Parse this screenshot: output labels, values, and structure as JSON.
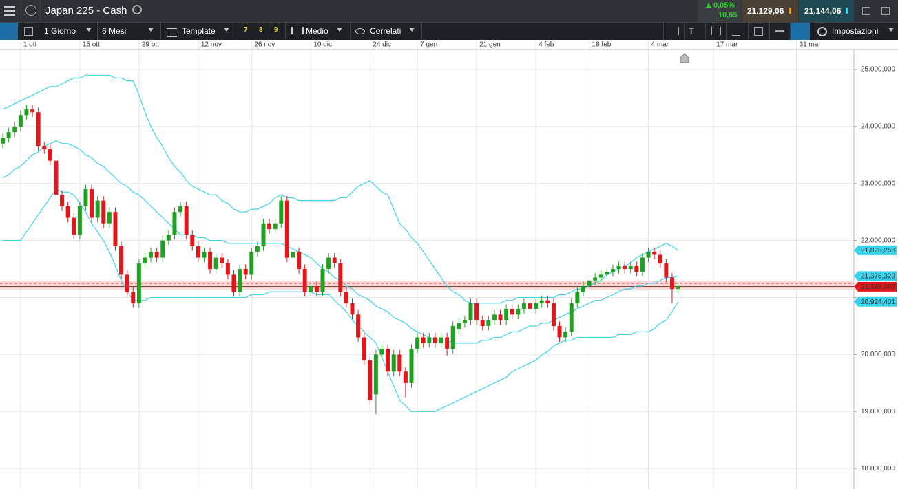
{
  "header": {
    "title": "Japan 225 - Cash",
    "change_pct": "0,05%",
    "change_abs": "10,65",
    "sell": "21.129,06",
    "buy": "21.144,06"
  },
  "toolbar": {
    "interval": "1 Giorno",
    "range": "6 Mesi",
    "template": "Template",
    "presets": [
      "7",
      "8",
      "9"
    ],
    "chart_style": "Medio",
    "related": "Correlati",
    "settings": "Impostazioni"
  },
  "chart_data": {
    "type": "candlestick",
    "up_color": "#21a121",
    "down_color": "#e3161b",
    "grid": true,
    "xlim": [
      -0.47,
      143.7
    ],
    "ylim": [
      17640,
      25350
    ],
    "xticks": [
      {
        "value": 3,
        "label": "1 ott"
      },
      {
        "value": 13,
        "label": "15 ott"
      },
      {
        "value": 23,
        "label": "29 ott"
      },
      {
        "value": 33,
        "label": "12 nov"
      },
      {
        "value": 42,
        "label": "26 nov"
      },
      {
        "value": 52,
        "label": "10 dic"
      },
      {
        "value": 62,
        "label": "24 dic"
      },
      {
        "value": 70,
        "label": "7 gen"
      },
      {
        "value": 80,
        "label": "21 gen"
      },
      {
        "value": 90,
        "label": "4 feb"
      },
      {
        "value": 99,
        "label": "18 feb"
      },
      {
        "value": 109,
        "label": "4 mar"
      },
      {
        "value": 120,
        "label": "17 mar"
      },
      {
        "value": 134,
        "label": "31 mar"
      }
    ],
    "yticks": [
      {
        "value": 18000,
        "label": "18.000,000"
      },
      {
        "value": 19000,
        "label": "19.000,000"
      },
      {
        "value": 20000,
        "label": "20.000,000"
      },
      {
        "value": 21000,
        "label": ""
      },
      {
        "value": 22000,
        "label": "22.000,000"
      },
      {
        "value": 23000,
        "label": "23.000,000"
      },
      {
        "value": 24000,
        "label": "24.000,000"
      },
      {
        "value": 25000,
        "label": "25.000,000"
      }
    ],
    "open": [
      23700,
      23800,
      23900,
      24000,
      24200,
      24300,
      24250,
      23650,
      23600,
      23400,
      22800,
      22600,
      22400,
      22100,
      22600,
      22900,
      22400,
      22700,
      22300,
      22500,
      21900,
      21400,
      21100,
      20900,
      21600,
      21700,
      21800,
      21700,
      22000,
      22100,
      22500,
      22600,
      22100,
      21900,
      21700,
      21800,
      21500,
      21700,
      21600,
      21400,
      21100,
      21500,
      21400,
      21800,
      21900,
      22300,
      22200,
      22300,
      22700,
      21700,
      21800,
      21500,
      21100,
      21200,
      21100,
      21500,
      21700,
      21600,
      21100,
      20900,
      20700,
      20300,
      19900,
      19300,
      20000,
      20100,
      19700,
      20000,
      19700,
      19500,
      20100,
      20300,
      20200,
      20300,
      20200,
      20300,
      20100,
      20450,
      20550,
      20600,
      20900,
      20600,
      20500,
      20600,
      20700,
      20600,
      20800,
      20700,
      20800,
      20900,
      20800,
      20900,
      20950,
      20900,
      20500,
      20300,
      20400,
      20900,
      21100,
      21200,
      21300,
      21350,
      21400,
      21450,
      21500,
      21550,
      21500,
      21550,
      21450,
      21700,
      21800,
      21750,
      21600,
      21350,
      21150
    ],
    "high": [
      23880,
      23980,
      24080,
      24280,
      24380,
      24380,
      24330,
      23730,
      23680,
      23480,
      22880,
      22680,
      22480,
      22680,
      22980,
      22980,
      22780,
      22780,
      22580,
      22580,
      21980,
      21480,
      21180,
      21680,
      21780,
      21880,
      21880,
      22080,
      22180,
      22580,
      22680,
      22680,
      22180,
      21980,
      21880,
      21880,
      21780,
      21780,
      21680,
      21480,
      21580,
      21580,
      21880,
      21980,
      22380,
      22380,
      22380,
      22780,
      22780,
      21880,
      21880,
      21580,
      21280,
      21280,
      21580,
      21780,
      21780,
      21680,
      21180,
      20980,
      20780,
      20380,
      19980,
      20080,
      20180,
      20180,
      20080,
      20080,
      19780,
      20180,
      20380,
      20380,
      20380,
      20380,
      20380,
      20380,
      20580,
      20630,
      20680,
      20980,
      20980,
      20680,
      20680,
      20780,
      20780,
      20880,
      20880,
      20880,
      20980,
      20980,
      20980,
      21030,
      21030,
      20980,
      20580,
      20480,
      20980,
      21180,
      21280,
      21380,
      21430,
      21480,
      21530,
      21580,
      21630,
      21630,
      21630,
      21630,
      21780,
      21880,
      21880,
      21830,
      21680,
      21430,
      21270
    ],
    "low": [
      23620,
      23720,
      23820,
      23920,
      24120,
      24170,
      23570,
      23520,
      23320,
      22720,
      22520,
      22320,
      22020,
      22020,
      22520,
      22320,
      22320,
      22220,
      22220,
      21820,
      21320,
      21020,
      20820,
      20820,
      21520,
      21620,
      21620,
      21620,
      21920,
      22020,
      22420,
      22020,
      21820,
      21620,
      21620,
      21420,
      21420,
      21520,
      21320,
      21020,
      21020,
      21320,
      21320,
      21720,
      21820,
      22120,
      22120,
      22220,
      21620,
      21620,
      21420,
      21020,
      21020,
      21020,
      21020,
      21420,
      21520,
      21020,
      20820,
      20620,
      20220,
      19820,
      19120,
      18950,
      19920,
      19620,
      19620,
      19620,
      19250,
      19420,
      20020,
      20120,
      20120,
      20120,
      20120,
      19980,
      20020,
      20370,
      20470,
      20520,
      20520,
      20420,
      20420,
      20520,
      20520,
      20520,
      20620,
      20620,
      20720,
      20720,
      20720,
      20820,
      20820,
      20420,
      20220,
      20220,
      20320,
      20820,
      21020,
      21120,
      21220,
      21270,
      21320,
      21370,
      21420,
      21420,
      21420,
      21370,
      21370,
      21620,
      21670,
      21520,
      21270,
      20900,
      21070
    ],
    "close": [
      23800,
      23900,
      24000,
      24200,
      24300,
      24250,
      23650,
      23600,
      23400,
      22800,
      22600,
      22400,
      22100,
      22600,
      22900,
      22400,
      22700,
      22300,
      22500,
      21900,
      21400,
      21100,
      20900,
      21600,
      21700,
      21800,
      21700,
      22000,
      22100,
      22500,
      22600,
      22100,
      21900,
      21700,
      21800,
      21500,
      21700,
      21600,
      21400,
      21100,
      21500,
      21400,
      21800,
      21900,
      22300,
      22200,
      22300,
      22700,
      21700,
      21800,
      21500,
      21100,
      21200,
      21100,
      21500,
      21700,
      21600,
      21100,
      20900,
      20700,
      20300,
      19900,
      19200,
      20000,
      20100,
      19700,
      20000,
      19700,
      19500,
      20100,
      20300,
      20200,
      20300,
      20200,
      20300,
      20100,
      20500,
      20550,
      20600,
      20900,
      20600,
      20500,
      20600,
      20700,
      20600,
      20800,
      20700,
      20800,
      20900,
      20800,
      20900,
      20950,
      20900,
      20500,
      20300,
      20400,
      20900,
      21100,
      21200,
      21300,
      21350,
      21400,
      21450,
      21500,
      21550,
      21500,
      21550,
      21450,
      21700,
      21800,
      21750,
      21600,
      21350,
      21150,
      21189.06
    ],
    "series": [
      {
        "color": "#3ad3ee",
        "values": [
          24300,
          24350,
          24400,
          24450,
          24500,
          24550,
          24600,
          24650,
          24700,
          24700,
          24750,
          24800,
          24850,
          24850,
          24900,
          24900,
          24900,
          24900,
          24900,
          24850,
          24850,
          24800,
          24800,
          24550,
          24250,
          24000,
          23800,
          23650,
          23450,
          23300,
          23200,
          23050,
          22950,
          22900,
          22850,
          22800,
          22800,
          22700,
          22650,
          22550,
          22500,
          22500,
          22550,
          22550,
          22600,
          22650,
          22750,
          22800,
          22750,
          22750,
          22700,
          22700,
          22700,
          22700,
          22700,
          22700,
          22700,
          22750,
          22750,
          22850,
          22950,
          23000,
          23050,
          22950,
          22850,
          22800,
          22550,
          22300,
          22200,
          22050,
          21950,
          21800,
          21650,
          21500,
          21350,
          21200,
          21100,
          21050,
          20950,
          20900,
          20900,
          20900,
          20900,
          20900,
          20900,
          20950,
          20950,
          21000,
          21000,
          21000,
          21000,
          21000,
          21000,
          21000,
          21050,
          21050,
          21100,
          21150,
          21150,
          21200,
          21250,
          21300,
          21400,
          21450,
          21500,
          21550,
          21600,
          21700,
          21750,
          21800,
          21850,
          21900,
          21950,
          21900,
          21828.258
        ]
      },
      {
        "color": "#3ad3ee",
        "values": [
          23100,
          23150,
          23250,
          23300,
          23400,
          23500,
          23550,
          23650,
          23700,
          23750,
          23700,
          23700,
          23650,
          23600,
          23500,
          23450,
          23350,
          23300,
          23200,
          23100,
          23000,
          22950,
          22850,
          22800,
          22700,
          22600,
          22500,
          22400,
          22300,
          22200,
          22100,
          22100,
          22100,
          22050,
          22050,
          22000,
          22000,
          22000,
          21950,
          21950,
          21950,
          21950,
          21950,
          21950,
          21950,
          21950,
          21950,
          21950,
          21900,
          21850,
          21800,
          21750,
          21700,
          21600,
          21500,
          21450,
          21350,
          21300,
          21200,
          21150,
          21050,
          21000,
          20950,
          20850,
          20800,
          20750,
          20650,
          20600,
          20550,
          20450,
          20400,
          20350,
          20300,
          20250,
          20250,
          20250,
          20200,
          20200,
          20200,
          20200,
          20200,
          20250,
          20250,
          20300,
          20300,
          20350,
          20400,
          20400,
          20450,
          20500,
          20500,
          20550,
          20550,
          20600,
          20650,
          20700,
          20750,
          20800,
          20850,
          20900,
          20950,
          20950,
          21000,
          21050,
          21100,
          21150,
          21150,
          21200,
          21200,
          21250,
          21250,
          21300,
          21350,
          21350,
          21376.329
        ]
      },
      {
        "color": "#3ad3ee",
        "values": [
          22000,
          22000,
          22000,
          22000,
          22150,
          22300,
          22450,
          22600,
          22750,
          22900,
          22850,
          22850,
          22800,
          22650,
          22500,
          22300,
          22150,
          22000,
          21800,
          21550,
          21300,
          21100,
          20950,
          20950,
          20950,
          21000,
          21000,
          21000,
          21000,
          21000,
          21000,
          21000,
          21000,
          21000,
          21000,
          21000,
          21000,
          21000,
          21000,
          21000,
          21000,
          21000,
          21050,
          21050,
          21050,
          21100,
          21100,
          21100,
          21100,
          21100,
          21100,
          21100,
          21100,
          21050,
          21050,
          21050,
          20950,
          20850,
          20750,
          20600,
          20500,
          20400,
          20300,
          20200,
          19950,
          19700,
          19450,
          19200,
          19100,
          19000,
          19000,
          19000,
          19000,
          19000,
          19050,
          19100,
          19150,
          19200,
          19250,
          19300,
          19350,
          19400,
          19450,
          19500,
          19550,
          19600,
          19700,
          19750,
          19800,
          19850,
          19900,
          20000,
          20050,
          20150,
          20200,
          20250,
          20250,
          20300,
          20300,
          20300,
          20300,
          20300,
          20300,
          20300,
          20350,
          20350,
          20350,
          20400,
          20400,
          20400,
          20450,
          20550,
          20600,
          20750,
          20924.401
        ]
      }
    ],
    "price_tags": [
      {
        "value": 21828.258,
        "label": "21.828,258",
        "color": "#3ad3ee"
      },
      {
        "value": 21376.329,
        "label": "21.376,329",
        "color": "#3ad3ee"
      },
      {
        "value": 21189.06,
        "label": "21.189,060",
        "color": "#e3161b"
      },
      {
        "value": 20924.401,
        "label": "20.924,401",
        "color": "#3ad3ee"
      }
    ]
  }
}
